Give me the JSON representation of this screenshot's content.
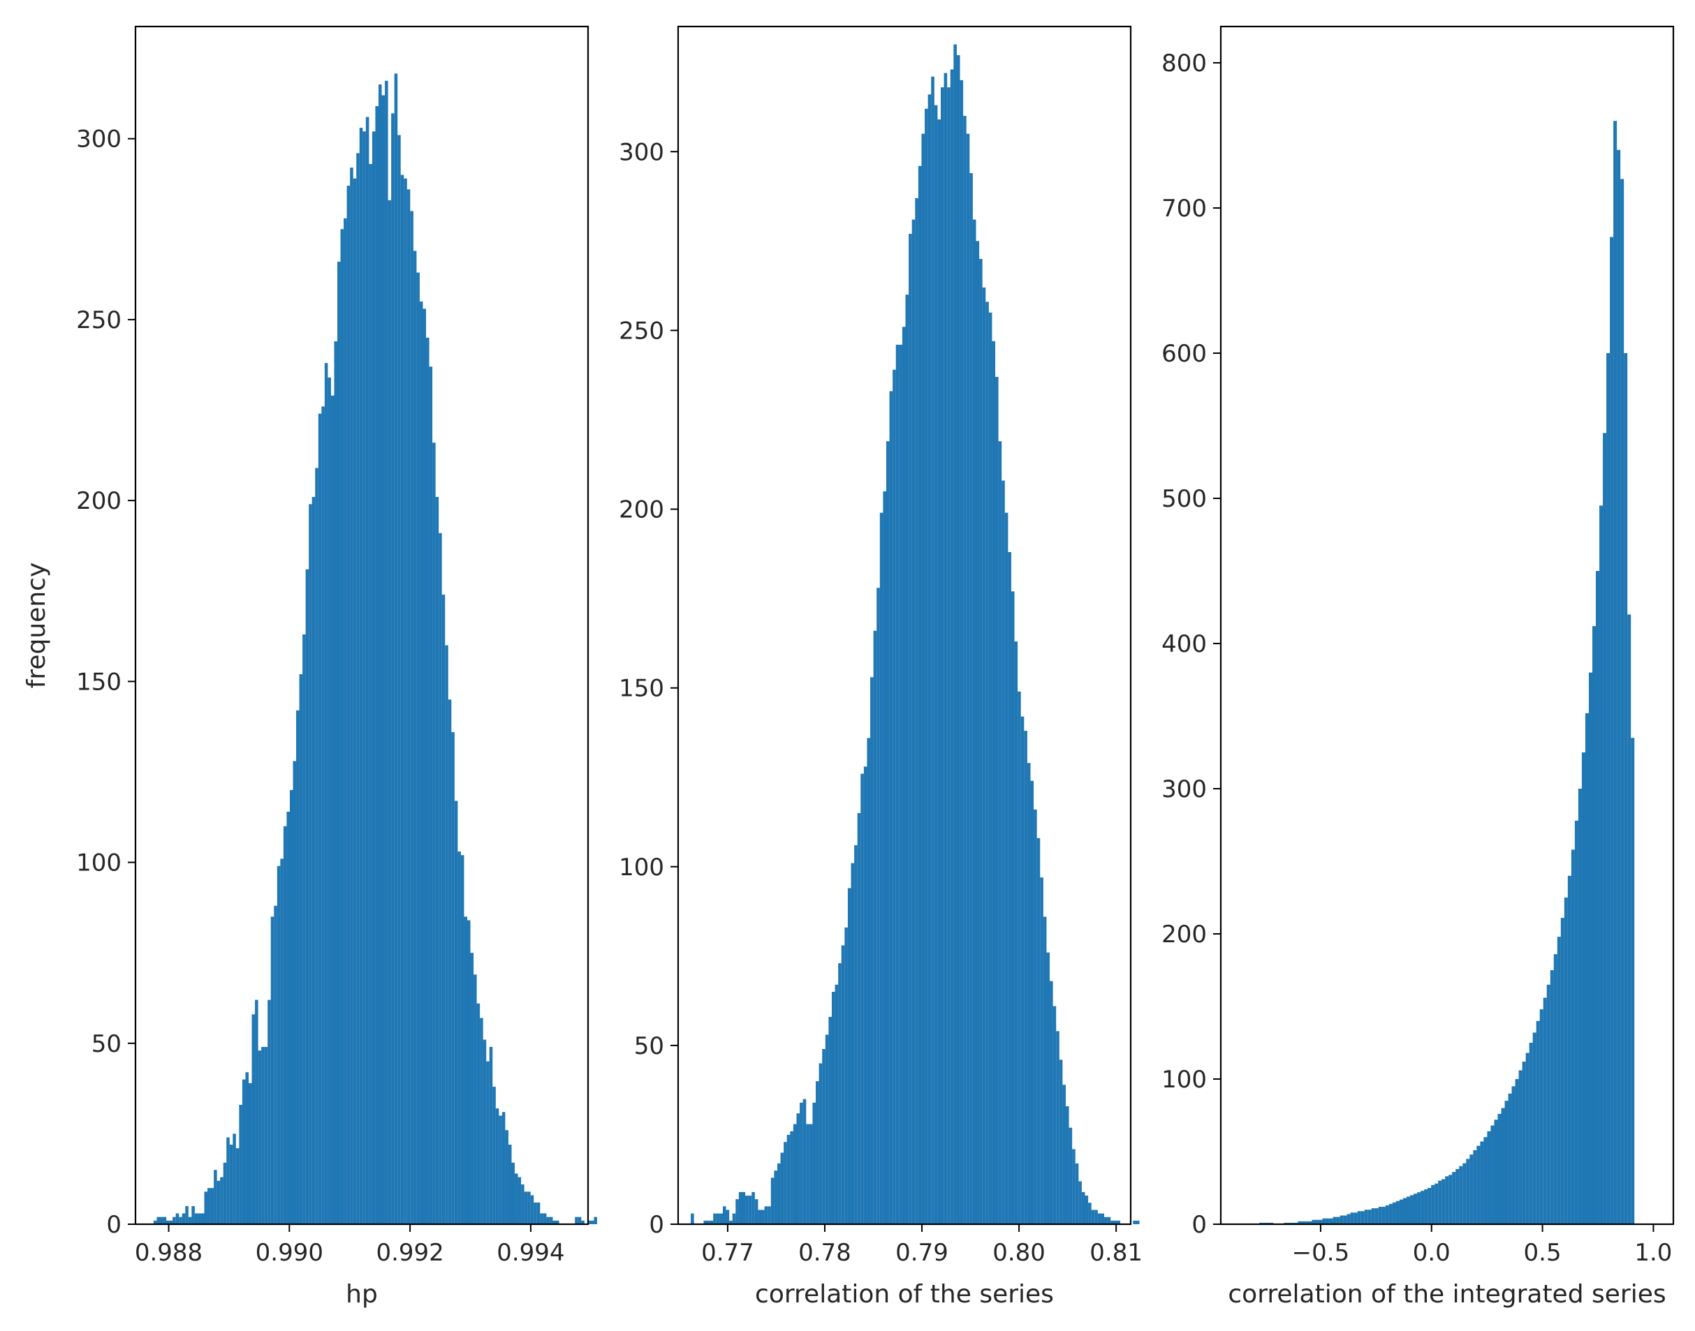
{
  "chart_data": [
    {
      "type": "bar",
      "xlabel": "hp",
      "ylabel": "frequency",
      "xlim": [
        0.98745,
        0.99495
      ],
      "ylim": [
        0,
        331
      ],
      "xticks": [
        0.988,
        0.99,
        0.992,
        0.994
      ],
      "xtick_labels": [
        "0.988",
        "0.990",
        "0.992",
        "0.994"
      ],
      "yticks": [
        0,
        50,
        100,
        150,
        200,
        250,
        300
      ],
      "ytick_labels": [
        "0",
        "50",
        "100",
        "150",
        "200",
        "250",
        "300"
      ],
      "bin_start": 0.98775,
      "bin_width": 5.25e-05,
      "color": "#1f77b4",
      "values": [
        1,
        2,
        2,
        2,
        1,
        1,
        2,
        3,
        2,
        3,
        5,
        2,
        5,
        3,
        3,
        3,
        9,
        10,
        10,
        15,
        12,
        13,
        17,
        24,
        22,
        25,
        21,
        33,
        40,
        42,
        39,
        58,
        62,
        48,
        49,
        49,
        62,
        85,
        88,
        99,
        101,
        110,
        114,
        120,
        128,
        142,
        152,
        163,
        181,
        199,
        201,
        209,
        224,
        226,
        238,
        234,
        229,
        244,
        266,
        275,
        278,
        287,
        292,
        289,
        296,
        303,
        302,
        306,
        293,
        302,
        309,
        315,
        312,
        316,
        283,
        307,
        318,
        301,
        290,
        289,
        286,
        280,
        269,
        263,
        255,
        253,
        245,
        237,
        216,
        201,
        191,
        174,
        160,
        145,
        136,
        117,
        103,
        102,
        85,
        84,
        75,
        69,
        61,
        57,
        51,
        45,
        49,
        38,
        32,
        30,
        31,
        26,
        22,
        17,
        14,
        13,
        11,
        9,
        9,
        8,
        6,
        6,
        3,
        3,
        2,
        2,
        1,
        1,
        0,
        0,
        0,
        0,
        0,
        2,
        2,
        1,
        0,
        1,
        1,
        2
      ]
    },
    {
      "type": "bar",
      "xlabel": "correlation of the series",
      "ylabel": "",
      "xlim": [
        0.7649,
        0.8115
      ],
      "ylim": [
        0,
        335
      ],
      "xticks": [
        0.77,
        0.78,
        0.79,
        0.8,
        0.81
      ],
      "xtick_labels": [
        "0.77",
        "0.78",
        "0.79",
        "0.80",
        "0.81"
      ],
      "yticks": [
        0,
        50,
        100,
        150,
        200,
        250,
        300
      ],
      "ytick_labels": [
        "0",
        "50",
        "100",
        "150",
        "200",
        "250",
        "300"
      ],
      "bin_start": 0.7662,
      "bin_width": 0.00033,
      "color": "#1f77b4",
      "values": [
        3,
        0,
        0,
        0,
        1,
        1,
        1,
        3,
        3,
        3,
        5,
        4,
        1,
        3,
        7,
        9,
        9,
        8,
        8,
        9,
        7,
        4,
        4,
        5,
        5,
        13,
        15,
        17,
        20,
        23,
        25,
        26,
        28,
        31,
        34,
        35,
        28,
        28,
        34,
        40,
        45,
        49,
        53,
        58,
        65,
        67,
        73,
        78,
        83,
        94,
        101,
        106,
        115,
        126,
        128,
        136,
        153,
        166,
        178,
        199,
        205,
        219,
        233,
        239,
        246,
        246,
        251,
        260,
        277,
        281,
        287,
        296,
        305,
        312,
        316,
        321,
        313,
        309,
        318,
        322,
        318,
        323,
        330,
        327,
        320,
        310,
        305,
        294,
        281,
        275,
        270,
        262,
        258,
        255,
        247,
        237,
        219,
        208,
        199,
        188,
        177,
        163,
        149,
        142,
        138,
        129,
        124,
        116,
        108,
        97,
        86,
        76,
        68,
        61,
        54,
        46,
        39,
        33,
        27,
        21,
        17,
        12,
        9,
        8,
        6,
        4,
        4,
        3,
        3,
        2,
        2,
        1,
        1,
        1,
        0,
        0,
        0,
        0,
        1,
        1,
        0,
        0
      ]
    },
    {
      "type": "bar",
      "xlabel": "correlation of the integrated series",
      "ylabel": "",
      "xlim": [
        -0.95,
        1.09
      ],
      "ylim": [
        0,
        825
      ],
      "xticks": [
        -0.5,
        0.0,
        0.5,
        1.0
      ],
      "xtick_labels": [
        "−0.5",
        "0.0",
        "0.5",
        "1.0"
      ],
      "yticks": [
        0,
        100,
        200,
        300,
        400,
        500,
        600,
        700,
        800
      ],
      "ytick_labels": [
        "0",
        "100",
        "200",
        "300",
        "400",
        "500",
        "600",
        "700",
        "800"
      ],
      "bin_start": -0.95,
      "bin_width": 0.0158,
      "color": "#1f77b4",
      "values": [
        0,
        0,
        0,
        0,
        0,
        0,
        0,
        0,
        0,
        0,
        0,
        1,
        1,
        1,
        1,
        0,
        0,
        0,
        1,
        1,
        1,
        1,
        2,
        2,
        2,
        2,
        3,
        3,
        3,
        4,
        4,
        4,
        5,
        5,
        6,
        6,
        7,
        8,
        8,
        9,
        9,
        10,
        10,
        11,
        11,
        12,
        12,
        13,
        14,
        15,
        16,
        17,
        18,
        19,
        20,
        21,
        22,
        23,
        24,
        25,
        27,
        28,
        30,
        31,
        33,
        34,
        36,
        38,
        40,
        42,
        45,
        48,
        51,
        54,
        57,
        60,
        64,
        68,
        72,
        76,
        80,
        85,
        90,
        95,
        100,
        106,
        112,
        118,
        125,
        132,
        140,
        148,
        156,
        165,
        175,
        186,
        198,
        211,
        225,
        240,
        258,
        278,
        300,
        325,
        352,
        380,
        412,
        450,
        495,
        545,
        600,
        680,
        760,
        740,
        720,
        600,
        420,
        335
      ]
    }
  ]
}
